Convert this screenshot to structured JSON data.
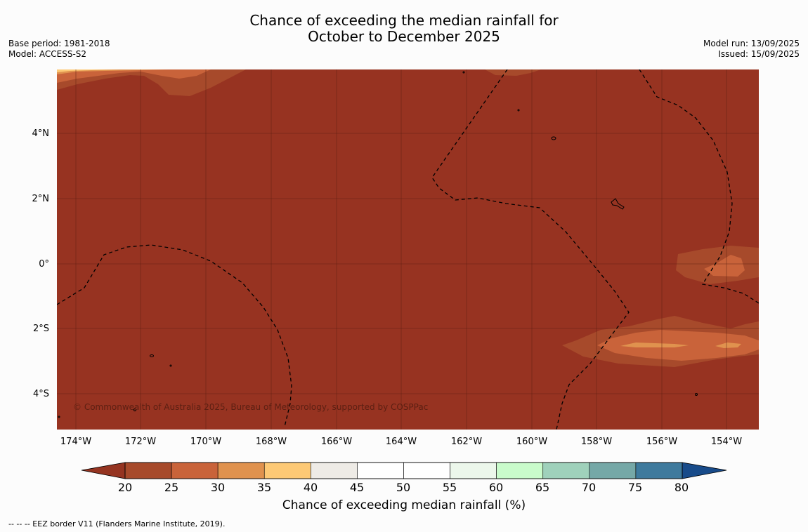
{
  "title_line1": "Chance of exceeding the median rainfall for",
  "title_line2": "October to December 2025",
  "meta_left": [
    "Base period: 1981-2018",
    "Model: ACCESS-S2"
  ],
  "meta_right": [
    "Model run: 13/09/2025",
    "Issued: 15/09/2025"
  ],
  "copyright": "© Commonwealth of Australia 2025, Bureau of Meteorology, supported by COSPPac",
  "x_ticks": [
    "174°W",
    "172°W",
    "170°W",
    "168°W",
    "166°W",
    "164°W",
    "162°W",
    "160°W",
    "158°W",
    "156°W",
    "154°W"
  ],
  "y_ticks": [
    "4°N",
    "2°N",
    "0°",
    "2°S",
    "4°S"
  ],
  "colorbar": {
    "title": "Chance of exceeding median rainfall (%)",
    "ticks": [
      "20",
      "25",
      "30",
      "35",
      "40",
      "45",
      "50",
      "55",
      "60",
      "65",
      "70",
      "75",
      "80"
    ],
    "colors": [
      "#a74a2b",
      "#c9633a",
      "#e0924e",
      "#fdc975",
      "#eeebe6",
      "#ffffff",
      "#ffffff",
      "#ecf7eb",
      "#c9fbcb",
      "#9fd1bb",
      "#75a8a7",
      "#3e7a9d"
    ],
    "under_color": "#953421",
    "over_color": "#184b8a"
  },
  "footnote": "--  --  -- EEZ border V11 (Flanders Marine Institute, 2019).",
  "background_category_color": "#973321"
}
